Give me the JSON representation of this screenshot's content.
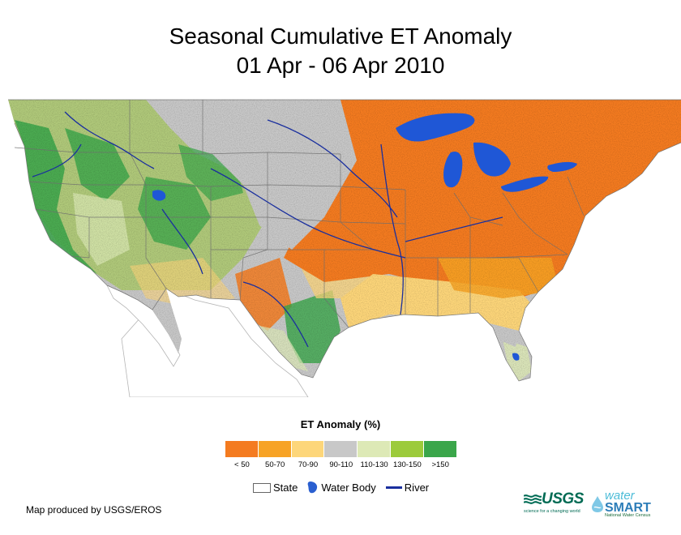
{
  "title_line1": "Seasonal Cumulative ET Anomaly",
  "title_line2": "01 Apr - 06 Apr 2010",
  "legend": {
    "title": "ET Anomaly (%)",
    "classes": [
      {
        "label": "< 50",
        "color": "#f47b20"
      },
      {
        "label": "50-70",
        "color": "#f7a325"
      },
      {
        "label": "70-90",
        "color": "#fdd67a"
      },
      {
        "label": "90-110",
        "color": "#c8c8c8"
      },
      {
        "label": "110-130",
        "color": "#dde9b6"
      },
      {
        "label": "130-150",
        "color": "#9ccb3b"
      },
      {
        "label": ">150",
        "color": "#3aa64a"
      }
    ]
  },
  "map_key": {
    "state": "State",
    "water": "Water Body",
    "river": "River"
  },
  "credit": "Map produced by USGS/EROS",
  "logos": {
    "usgs": "USGS",
    "usgs_tagline": "science for a changing world",
    "ws_water": "water",
    "ws_smart": "SMART",
    "ws_tagline": "National Water Census"
  },
  "colors": {
    "water": "#1f57d6",
    "river": "#1a2f9e",
    "state_line": "#6e6e6e"
  }
}
